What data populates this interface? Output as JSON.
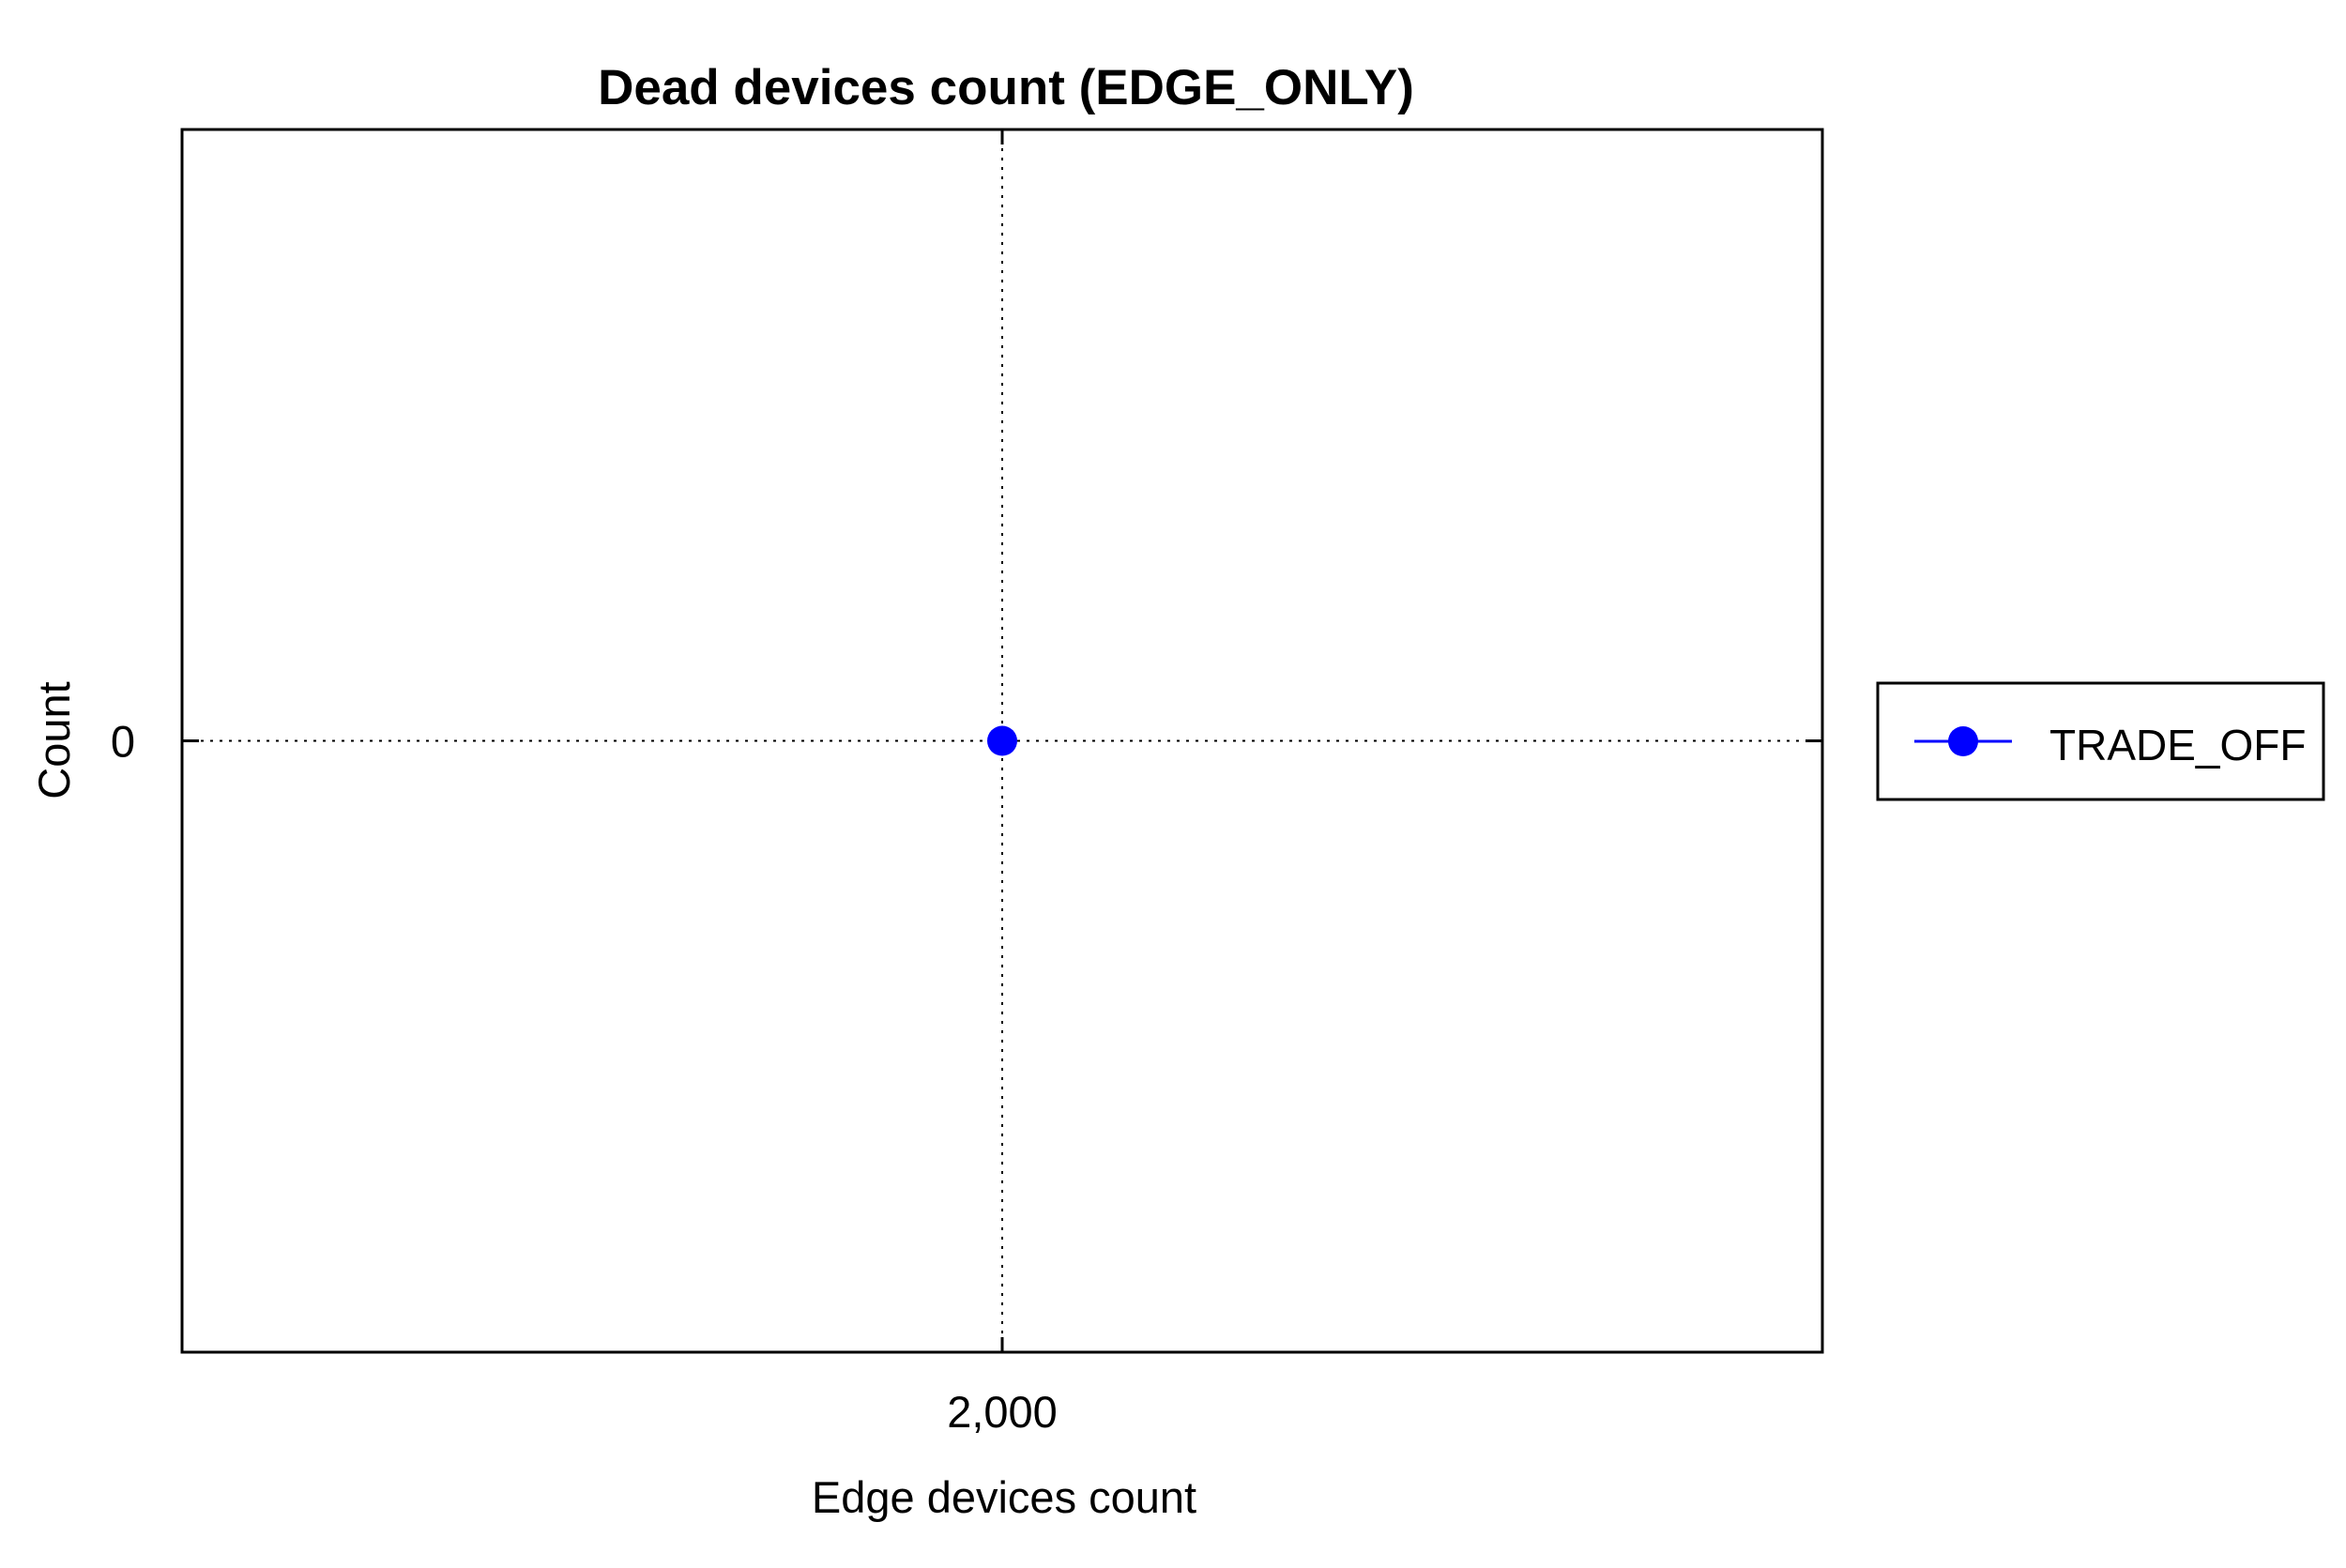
{
  "chart_data": {
    "type": "line",
    "title": "Dead devices count (EDGE_ONLY)",
    "xlabel": "Edge devices count",
    "ylabel": "Count",
    "x_ticks": [
      {
        "value": 2000,
        "label": "2,000"
      }
    ],
    "y_ticks": [
      {
        "value": 0,
        "label": "0"
      }
    ],
    "xlim": [
      1000,
      3000
    ],
    "ylim": [
      -1,
      1
    ],
    "grid": true,
    "legend_position": "right",
    "series": [
      {
        "name": "TRADE_OFF",
        "color": "#0000ff",
        "marker": "circle",
        "points": [
          {
            "x": 2000,
            "y": 0
          }
        ]
      }
    ]
  }
}
